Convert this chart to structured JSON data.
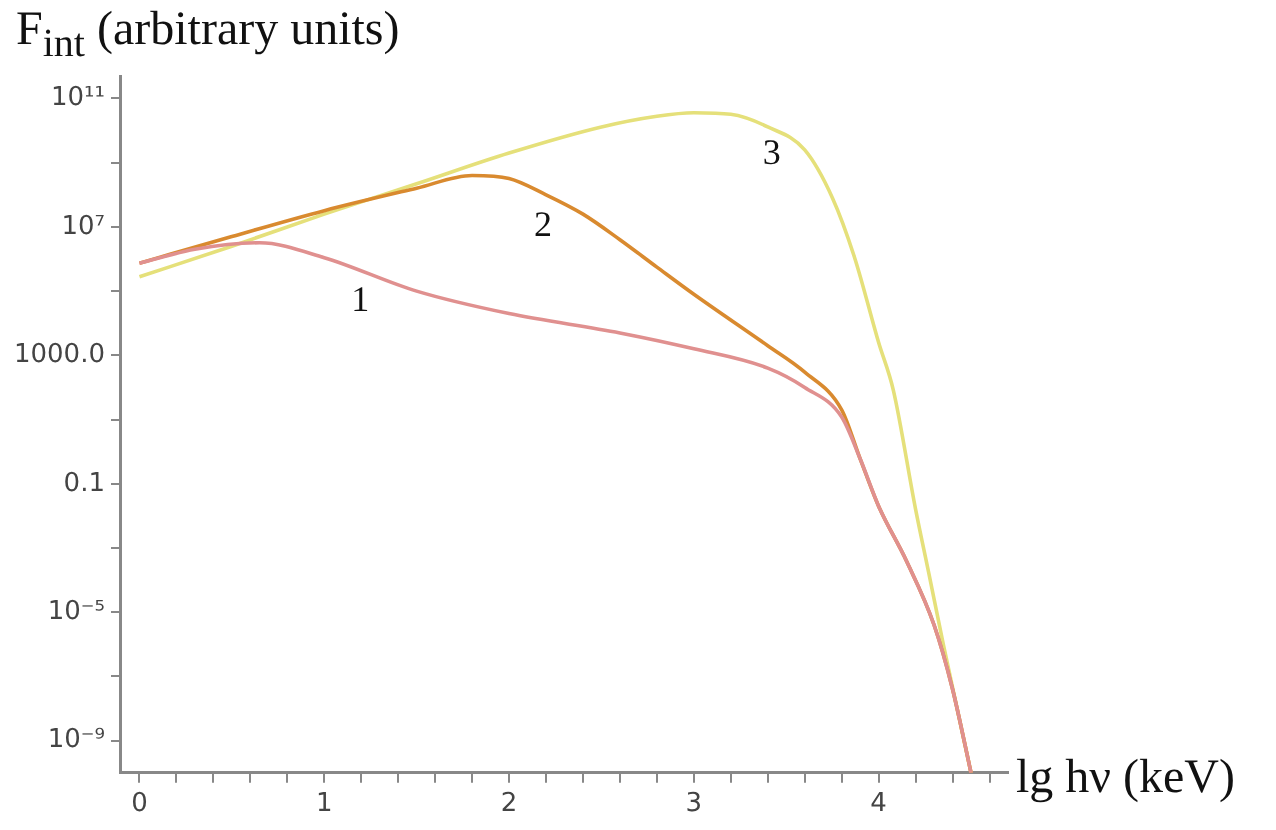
{
  "chart_data": {
    "type": "line",
    "ylabel": "F$_{int}$ (arbitrary units)",
    "xlabel": "lg hν (keV)",
    "log": "y",
    "grid": false,
    "legend": false,
    "marker": "none",
    "line_style": "solid",
    "xlim": [
      -0.1,
      4.7
    ],
    "xticks": [
      0,
      {
        "value": 0.2,
        "label": null
      },
      {
        "value": 0.4,
        "label": null
      },
      {
        "value": 0.6,
        "label": null
      },
      {
        "value": 0.8,
        "label": null
      },
      1,
      {
        "value": 1.2,
        "label": null
      },
      {
        "value": 1.4,
        "label": null
      },
      {
        "value": 1.6,
        "label": null
      },
      {
        "value": 1.8,
        "label": null
      },
      2,
      {
        "value": 2.2,
        "label": null
      },
      {
        "value": 2.4,
        "label": null
      },
      {
        "value": 2.6,
        "label": null
      },
      {
        "value": 2.8,
        "label": null
      },
      3,
      {
        "value": 3.2,
        "label": null
      },
      {
        "value": 3.4,
        "label": null
      },
      {
        "value": 3.6,
        "label": null
      },
      {
        "value": 3.8,
        "label": null
      },
      4,
      {
        "value": 4.2,
        "label": null
      },
      {
        "value": 4.4,
        "label": null
      },
      {
        "value": 4.6,
        "label": null
      }
    ],
    "ylim": [
      1e-10,
      500000000000.0
    ],
    "yticks": [
      {
        "value": 100000000000.0,
        "label": "10¹¹"
      },
      {
        "value": 1000000000.0,
        "label": null
      },
      {
        "value": 10000000.0,
        "label": "10⁷"
      },
      {
        "value": 100000.0,
        "label": null
      },
      {
        "value": 1000,
        "label": "1000.0"
      },
      {
        "value": 10,
        "label": null
      },
      0.1,
      {
        "value": 0.001,
        "label": null
      },
      {
        "value": 1e-05,
        "label": "10⁻⁵"
      },
      {
        "value": 1e-07,
        "label": null
      },
      {
        "value": 1e-09,
        "label": "10⁻⁹"
      }
    ],
    "series": [
      {
        "name": "1",
        "color": "#e0908f",
        "x": [
          0,
          0.3,
          0.65,
          1,
          1.5,
          2,
          2.6,
          3.0,
          3.4,
          3.6,
          3.8,
          3.9,
          4.0,
          4.15,
          4.3,
          4.4,
          4.5
        ],
        "values": [
          740000.0,
          2000000.0,
          3200000.0,
          1100000.0,
          100000.0,
          20000.0,
          5000.0,
          1600.0,
          400,
          100,
          12,
          0.6,
          0.02,
          0.0004,
          4e-06,
          4e-08,
          1e-10
        ]
      },
      {
        "name": "2",
        "color": "#d98a2f",
        "x": [
          0,
          0.5,
          1,
          1.5,
          1.8,
          2.0,
          2.2,
          2.4,
          2.6,
          2.8,
          3.0,
          3.4,
          3.6,
          3.8,
          3.9,
          4.0,
          4.15,
          4.3,
          4.4,
          4.5
        ],
        "values": [
          740000.0,
          5000000.0,
          32000000.0,
          160000000.0,
          400000000.0,
          320000000.0,
          100000000.0,
          25000000.0,
          4000000.0,
          560000.0,
          80000.0,
          2000.0,
          300,
          20,
          0.6,
          0.02,
          0.0004,
          4e-06,
          4e-08,
          1e-10
        ]
      },
      {
        "name": "3",
        "color": "#e5e07a",
        "x": [
          0,
          0.5,
          1,
          1.5,
          2,
          2.5,
          2.8,
          3.0,
          3.2,
          3.4,
          3.6,
          3.75,
          3.87,
          4.0,
          4.08,
          4.2,
          4.27,
          4.35,
          4.5
        ],
        "values": [
          280000.0,
          2500000.0,
          25000000.0,
          220000000.0,
          2000000000.0,
          13000000000.0,
          28000000000.0,
          36000000000.0,
          32000000000.0,
          13000000000.0,
          2500000000.0,
          80000000.0,
          1100000.0,
          2500.0,
          80,
          0.016,
          0.00018,
          1e-06,
          1e-10
        ]
      }
    ]
  }
}
